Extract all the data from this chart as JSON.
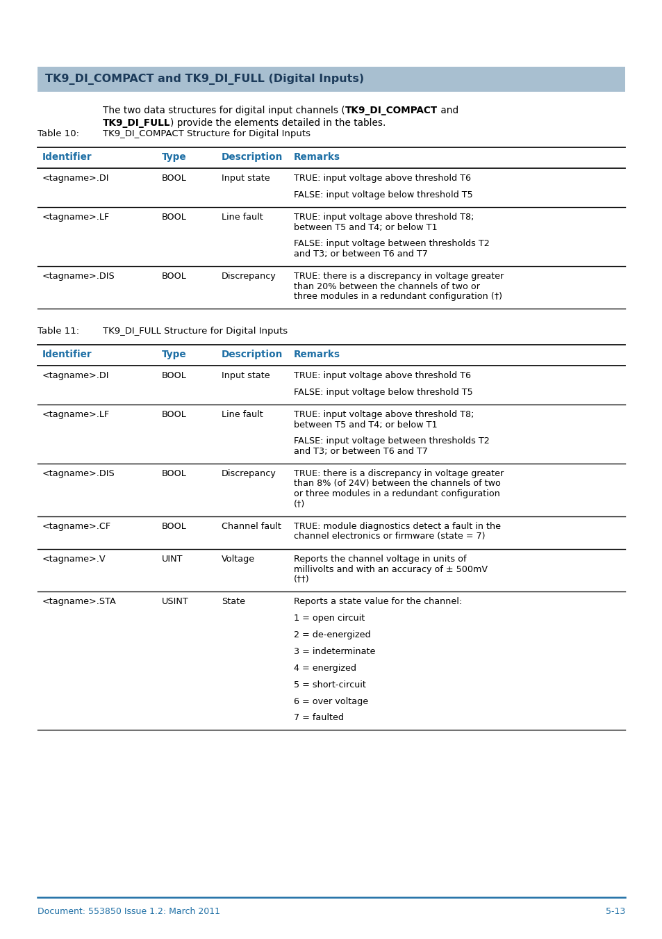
{
  "page_bg": "#ffffff",
  "header_bg": "#a8bfd0",
  "header_text_color": "#1c3b5a",
  "header_font_size": 11.5,
  "table_header_color": "#1e6fa5",
  "body_font_size": 9.2,
  "footer_text_color": "#1e6fa5",
  "footer_font_size": 9,
  "section_title": "TK9_DI_COMPACT and TK9_DI_FULL (Digital Inputs)",
  "intro_line1_pre": "The two data structures for digital input channels (",
  "intro_line1_bold": "TK9_DI_COMPACT",
  "intro_line1_post": " and",
  "intro_line2_bold": "TK9_DI_FULL",
  "intro_line2_post": ") provide the elements detailed in the tables.",
  "table1_label": "Table 10:",
  "table1_title": "TK9_DI_COMPACT Structure for Digital Inputs",
  "table2_label": "Table 11:",
  "table2_title": "TK9_DI_FULL Structure for Digital Inputs",
  "col_headers": [
    "Identifier",
    "Type",
    "Description",
    "Remarks"
  ],
  "table1_rows": [
    {
      "id": "<tagname>.DI",
      "type": "BOOL",
      "desc": "Input state",
      "remarks_lines": [
        "TRUE: input voltage above threshold T6",
        "",
        "FALSE: input voltage below threshold T5"
      ]
    },
    {
      "id": "<tagname>.LF",
      "type": "BOOL",
      "desc": "Line fault",
      "remarks_lines": [
        "TRUE: input voltage above threshold T8;",
        "between T5 and T4; or below T1",
        "",
        "FALSE: input voltage between thresholds T2",
        "and T3; or between T6 and T7"
      ]
    },
    {
      "id": "<tagname>.DIS",
      "type": "BOOL",
      "desc": "Discrepancy",
      "remarks_lines": [
        "TRUE: there is a discrepancy in voltage greater",
        "than 20% between the channels of two or",
        "three modules in a redundant configuration (†)"
      ]
    }
  ],
  "table2_rows": [
    {
      "id": "<tagname>.DI",
      "type": "BOOL",
      "desc": "Input state",
      "remarks_lines": [
        "TRUE: input voltage above threshold T6",
        "",
        "FALSE: input voltage below threshold T5"
      ]
    },
    {
      "id": "<tagname>.LF",
      "type": "BOOL",
      "desc": "Line fault",
      "remarks_lines": [
        "TRUE: input voltage above threshold T8;",
        "between T5 and T4; or below T1",
        "",
        "FALSE: input voltage between thresholds T2",
        "and T3; or between T6 and T7"
      ]
    },
    {
      "id": "<tagname>.DIS",
      "type": "BOOL",
      "desc": "Discrepancy",
      "remarks_lines": [
        "TRUE: there is a discrepancy in voltage greater",
        "than 8% (of 24V) between the channels of two",
        "or three modules in a redundant configuration",
        "(†)"
      ]
    },
    {
      "id": "<tagname>.CF",
      "type": "BOOL",
      "desc": "Channel fault",
      "remarks_lines": [
        "TRUE: module diagnostics detect a fault in the",
        "channel electronics or firmware (state = 7)"
      ]
    },
    {
      "id": "<tagname>.V",
      "type": "UINT",
      "desc": "Voltage",
      "remarks_lines": [
        "Reports the channel voltage in units of",
        "millivolts and with an accuracy of ± 500mV",
        "(††)"
      ]
    },
    {
      "id": "<tagname>.STA",
      "type": "USINT",
      "desc": "State",
      "remarks_lines": [
        "Reports a state value for the channel:",
        "",
        "1 = open circuit",
        "",
        "2 = de-energized",
        "",
        "3 = indeterminate",
        "",
        "4 = energized",
        "",
        "5 = short-circuit",
        "",
        "6 = over voltage",
        "",
        "7 = faulted"
      ]
    }
  ],
  "footer_left": "Document: 553850 Issue 1.2: March 2011",
  "footer_right": "5-13",
  "accent_color": "#1e6fa5",
  "line_color": "#2a2a2a"
}
